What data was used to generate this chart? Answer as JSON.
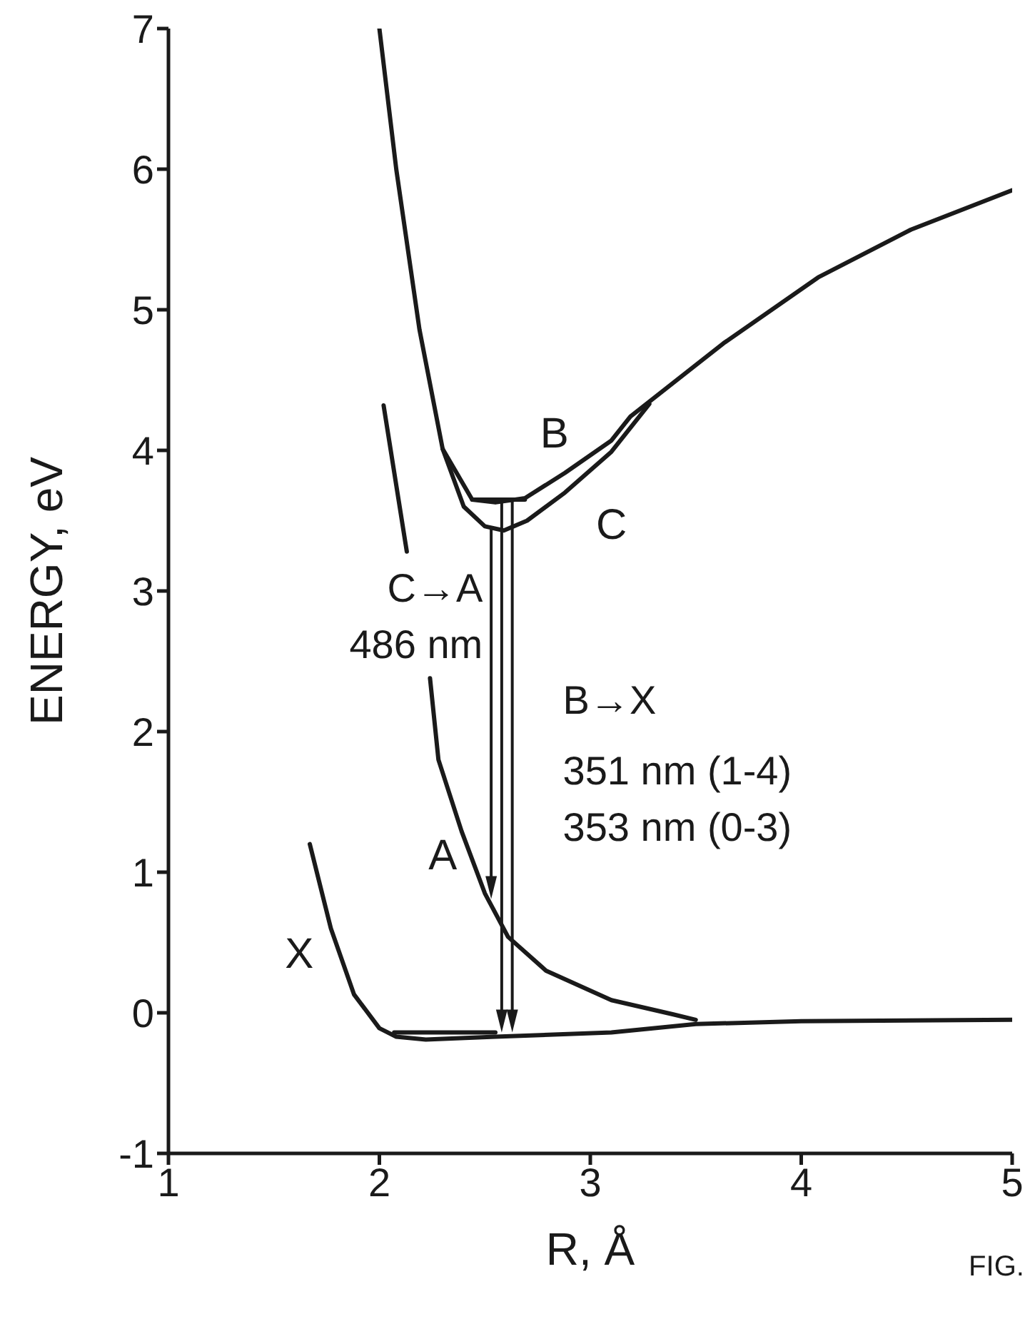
{
  "chart_data": {
    "type": "line",
    "xlabel": "R, Å",
    "ylabel": "ENERGY, eV",
    "xlim": [
      1,
      5
    ],
    "ylim": [
      -1,
      7
    ],
    "xticks": [
      1,
      2,
      3,
      4,
      5
    ],
    "yticks": [
      -1,
      0,
      1,
      2,
      3,
      4,
      5,
      6,
      7
    ],
    "annotations": [
      "C→A",
      "486 nm",
      "B→X",
      "351 nm (1-4)",
      "353 nm (0-3)",
      "FIG."
    ],
    "series": [
      {
        "name": "B",
        "color": "#1a1a1a",
        "x": [
          2.0,
          2.08,
          2.19,
          2.3,
          2.44,
          2.55,
          2.69,
          2.88,
          3.1,
          3.19,
          3.63,
          4.08,
          4.52,
          5.0
        ],
        "values": [
          7.0,
          6.0,
          4.86,
          4.01,
          3.65,
          3.63,
          3.66,
          3.84,
          4.07,
          4.24,
          4.76,
          5.23,
          5.57,
          5.85
        ]
      },
      {
        "name": "C",
        "color": "#1a1a1a",
        "x": [
          2.3,
          2.4,
          2.5,
          2.59,
          2.7,
          2.88,
          3.1,
          3.28
        ],
        "values": [
          4.01,
          3.6,
          3.46,
          3.43,
          3.5,
          3.7,
          3.99,
          4.33
        ]
      },
      {
        "name": "A",
        "color": "#1a1a1a",
        "x": [
          2.02,
          2.13,
          2.18,
          2.24,
          2.28,
          2.39,
          2.5,
          2.61,
          2.79,
          3.1,
          3.39,
          3.5
        ],
        "values": [
          4.32,
          3.28,
          null,
          2.38,
          1.8,
          1.29,
          0.85,
          0.54,
          0.3,
          0.09,
          -0.01,
          -0.05
        ]
      },
      {
        "name": "X",
        "color": "#1a1a1a",
        "x": [
          1.67,
          1.77,
          1.88,
          2.0,
          2.08,
          2.22,
          2.55,
          3.1,
          3.5,
          4.0,
          5.0
        ],
        "values": [
          1.2,
          0.6,
          0.13,
          -0.11,
          -0.17,
          -0.19,
          -0.17,
          -0.14,
          -0.08,
          -0.06,
          -0.05
        ]
      },
      {
        "color": "#1a1a1a",
        "x": [
          2.44,
          2.69
        ],
        "values": [
          3.65,
          3.65
        ]
      },
      {
        "color": "#1a1a1a",
        "x": [
          2.07,
          2.55
        ],
        "values": [
          -0.14,
          -0.14
        ]
      }
    ]
  }
}
